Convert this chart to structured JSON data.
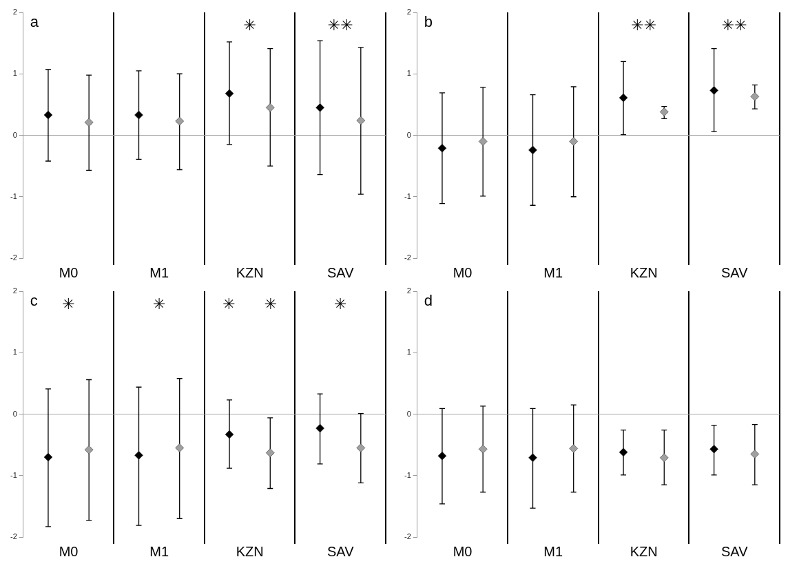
{
  "chart_data": [
    {
      "type": "scatter",
      "title": "a",
      "categories": [
        "M0",
        "M1",
        "KZN",
        "SAV"
      ],
      "marker": "diamond",
      "grid": "x",
      "ylim": [
        -2,
        2
      ],
      "yticks": [
        -2,
        -1,
        0,
        1,
        2
      ],
      "ref_lines": [
        {
          "axis": "y",
          "value": 0,
          "color": "#a6a6a6"
        }
      ],
      "annotations": [
        "✳",
        "✳✳"
      ],
      "series": [
        {
          "color": "#000000",
          "values": [
            0.33,
            0.33,
            0.68,
            0.45
          ],
          "errors": [
            [
              -0.42,
              1.07
            ],
            [
              -0.39,
              1.05
            ],
            [
              -0.15,
              1.52
            ],
            [
              -0.64,
              1.54
            ]
          ]
        },
        {
          "color": "#a0a0a0",
          "values": [
            0.21,
            0.23,
            0.45,
            0.24
          ],
          "errors": [
            [
              -0.57,
              0.98
            ],
            [
              -0.56,
              1.0
            ],
            [
              -0.5,
              1.41
            ],
            [
              -0.96,
              1.43
            ]
          ]
        }
      ]
    },
    {
      "type": "scatter",
      "title": "b",
      "categories": [
        "M0",
        "M1",
        "KZN",
        "SAV"
      ],
      "marker": "diamond",
      "grid": "x",
      "ylim": [
        -2,
        2
      ],
      "yticks": [
        -2,
        -1,
        0,
        1,
        2
      ],
      "ref_lines": [
        {
          "axis": "y",
          "value": 0,
          "color": "#a6a6a6"
        }
      ],
      "annotations": [
        "✳✳",
        "✳✳"
      ],
      "series": [
        {
          "color": "#000000",
          "values": [
            -0.21,
            -0.24,
            0.61,
            0.73
          ],
          "errors": [
            [
              -1.11,
              0.69
            ],
            [
              -1.14,
              0.66
            ],
            [
              0.01,
              1.2
            ],
            [
              0.06,
              1.41
            ]
          ]
        },
        {
          "color": "#a0a0a0",
          "values": [
            -0.1,
            -0.1,
            0.38,
            0.63
          ],
          "errors": [
            [
              -0.99,
              0.78
            ],
            [
              -1.0,
              0.79
            ],
            [
              0.27,
              0.47
            ],
            [
              0.43,
              0.82
            ]
          ]
        }
      ]
    },
    {
      "type": "scatter",
      "title": "c",
      "categories": [
        "M0",
        "M1",
        "KZN",
        "SAV"
      ],
      "marker": "diamond",
      "grid": "x",
      "ylim": [
        -2,
        2
      ],
      "yticks": [
        -2,
        -1,
        0,
        1,
        2
      ],
      "ref_lines": [
        {
          "axis": "y",
          "value": 0,
          "color": "#a6a6a6"
        }
      ],
      "annotations": [
        "✳",
        "✳",
        "✳      ✳",
        "✳"
      ],
      "series": [
        {
          "color": "#000000",
          "values": [
            -0.7,
            -0.67,
            -0.33,
            -0.23
          ],
          "errors": [
            [
              -1.83,
              0.41
            ],
            [
              -1.81,
              0.44
            ],
            [
              -0.88,
              0.23
            ],
            [
              -0.81,
              0.33
            ]
          ]
        },
        {
          "color": "#a0a0a0",
          "values": [
            -0.58,
            -0.55,
            -0.63,
            -0.55
          ],
          "errors": [
            [
              -1.73,
              0.56
            ],
            [
              -1.7,
              0.58
            ],
            [
              -1.21,
              -0.06
            ],
            [
              -1.12,
              0.01
            ]
          ]
        }
      ]
    },
    {
      "type": "scatter",
      "title": "d",
      "categories": [
        "M0",
        "M1",
        "KZN",
        "SAV"
      ],
      "marker": "diamond",
      "grid": "x",
      "ylim": [
        -2,
        2
      ],
      "yticks": [
        -2,
        -1,
        0,
        1,
        2
      ],
      "ref_lines": [
        {
          "axis": "y",
          "value": 0,
          "color": "#a6a6a6"
        }
      ],
      "series": [
        {
          "color": "#000000",
          "values": [
            -0.68,
            -0.71,
            -0.62,
            -0.57
          ],
          "errors": [
            [
              -1.46,
              0.09
            ],
            [
              -1.53,
              0.09
            ],
            [
              -0.99,
              -0.26
            ],
            [
              -0.99,
              -0.18
            ]
          ]
        },
        {
          "color": "#a0a0a0",
          "values": [
            -0.57,
            -0.56,
            -0.71,
            -0.65
          ],
          "errors": [
            [
              -1.27,
              0.13
            ],
            [
              -1.27,
              0.15
            ],
            [
              -1.15,
              -0.26
            ],
            [
              -1.15,
              -0.17
            ]
          ]
        }
      ]
    }
  ]
}
